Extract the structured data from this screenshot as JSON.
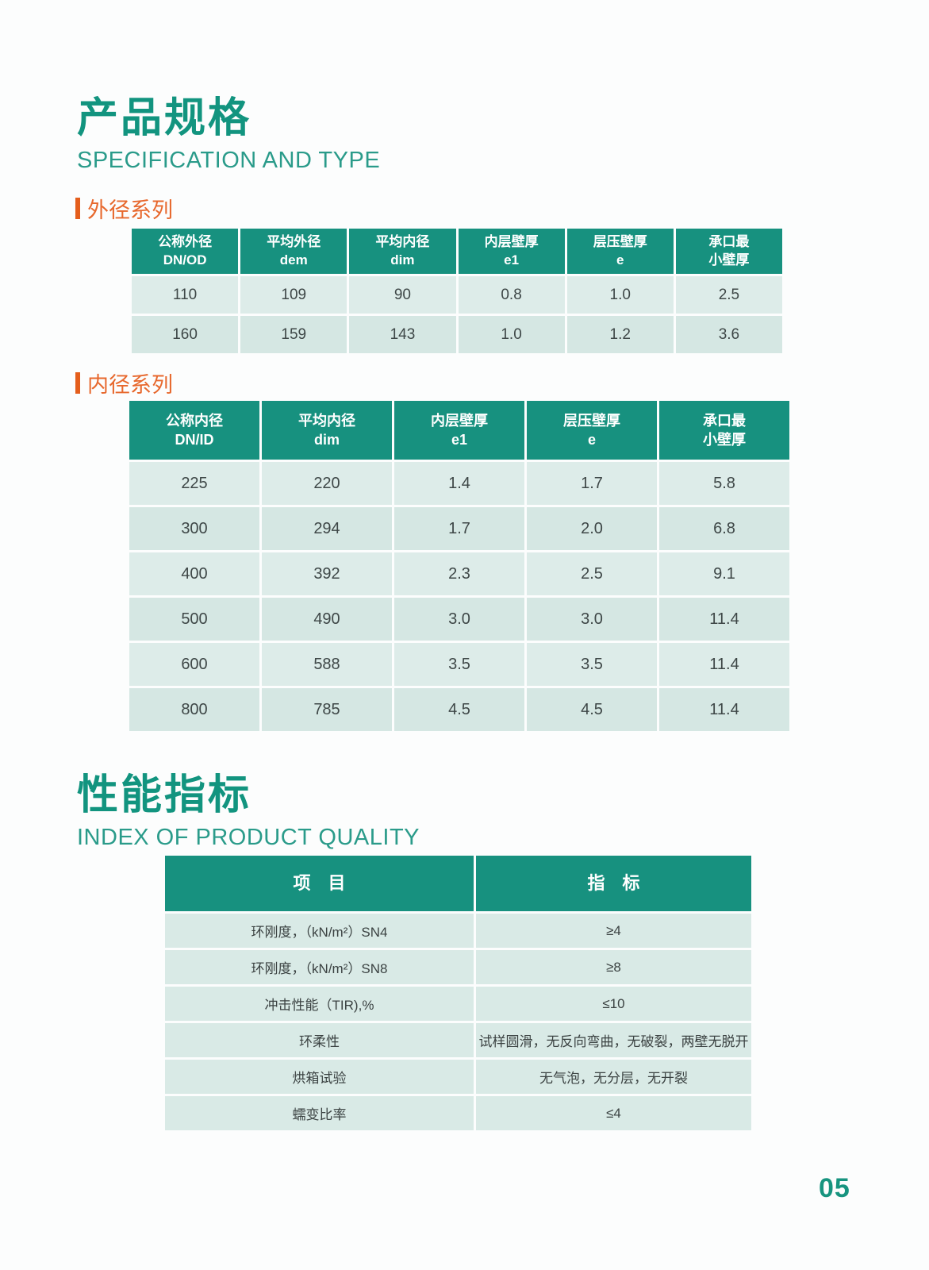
{
  "colors": {
    "teal_title": "#12947f",
    "teal_header": "#17917f",
    "orange_label": "#e7682d",
    "row_light": "#ddece9",
    "row_alt": "#d5e7e3"
  },
  "spec_section": {
    "title_cn": "产品规格",
    "title_en": "SPECIFICATION AND TYPE"
  },
  "od_series": {
    "label": "外径系列",
    "table": {
      "headers": [
        [
          "公称外径",
          "DN/OD"
        ],
        [
          "平均外径",
          "dem"
        ],
        [
          "平均内径",
          "dim"
        ],
        [
          "内层壁厚",
          "e1"
        ],
        [
          "层压壁厚",
          "e"
        ],
        [
          "承口最",
          "小壁厚"
        ]
      ],
      "rows": [
        [
          "110",
          "109",
          "90",
          "0.8",
          "1.0",
          "2.5"
        ],
        [
          "160",
          "159",
          "143",
          "1.0",
          "1.2",
          "3.6"
        ]
      ]
    }
  },
  "id_series": {
    "label": "内径系列",
    "table": {
      "headers": [
        [
          "公称内径",
          "DN/ID"
        ],
        [
          "平均内径",
          "dim"
        ],
        [
          "内层壁厚",
          "e1"
        ],
        [
          "层压壁厚",
          "e"
        ],
        [
          "承口最",
          "小壁厚"
        ]
      ],
      "rows": [
        [
          "225",
          "220",
          "1.4",
          "1.7",
          "5.8"
        ],
        [
          "300",
          "294",
          "1.7",
          "2.0",
          "6.8"
        ],
        [
          "400",
          "392",
          "2.3",
          "2.5",
          "9.1"
        ],
        [
          "500",
          "490",
          "3.0",
          "3.0",
          "11.4"
        ],
        [
          "600",
          "588",
          "3.5",
          "3.5",
          "11.4"
        ],
        [
          "800",
          "785",
          "4.5",
          "4.5",
          "11.4"
        ]
      ]
    }
  },
  "quality_section": {
    "title_cn": "性能指标",
    "title_en": "INDEX OF PRODUCT QUALITY",
    "table": {
      "headers": [
        [
          "项  目"
        ],
        [
          "指  标"
        ]
      ],
      "rows": [
        [
          "环刚度，（kN/m²）SN4",
          "≥4"
        ],
        [
          "环刚度，（kN/m²）SN8",
          "≥8"
        ],
        [
          "冲击性能（TIR),%",
          "≤10"
        ],
        [
          "环柔性",
          "试样圆滑，无反向弯曲，无破裂，两壁无脱开"
        ],
        [
          "烘箱试验",
          "无气泡，无分层，无开裂"
        ],
        [
          "蠕变比率",
          "≤4"
        ]
      ]
    }
  },
  "footer": {
    "page_number": "05"
  }
}
